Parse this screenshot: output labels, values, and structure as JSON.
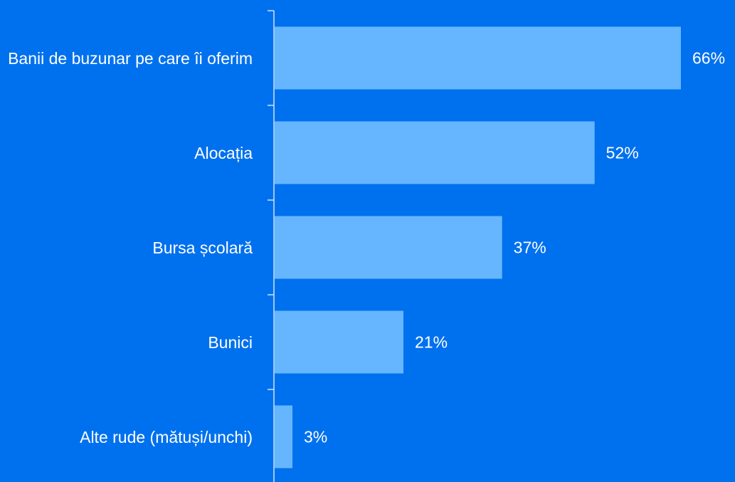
{
  "chart_data": {
    "type": "barh",
    "categories": [
      "Banii de buzunar pe care îi oferim",
      "Alocația",
      "Bursa școlară",
      "Bunici",
      "Alte rude (mătuși/unchi)"
    ],
    "values": [
      66,
      52,
      37,
      21,
      3
    ],
    "value_labels": [
      "66%",
      "52%",
      "37%",
      "21%",
      "3%"
    ],
    "color": "#66b6ff"
  }
}
